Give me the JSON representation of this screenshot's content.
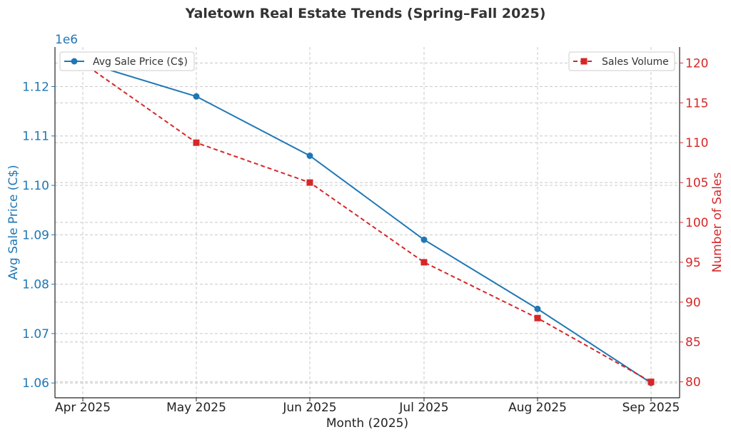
{
  "chart_data": {
    "type": "line",
    "title": "Yaletown Real Estate Trends (Spring–Fall 2025)",
    "xlabel": "Month (2025)",
    "categories": [
      "Apr 2025",
      "May 2025",
      "Jun 2025",
      "Jul 2025",
      "Aug 2025",
      "Sep 2025"
    ],
    "y_left": {
      "label": "Avg Sale Price (C$)",
      "offset_text": "1e6",
      "ticks": [
        "1.06",
        "1.07",
        "1.08",
        "1.09",
        "1.10",
        "1.11",
        "1.12"
      ],
      "tick_values": [
        1060000,
        1070000,
        1080000,
        1090000,
        1100000,
        1110000,
        1120000
      ],
      "ylim": [
        1057000,
        1128000
      ]
    },
    "y_right": {
      "label": "Number of Sales",
      "ticks": [
        "80",
        "85",
        "90",
        "95",
        "100",
        "105",
        "110",
        "115",
        "120"
      ],
      "tick_values": [
        80,
        85,
        90,
        95,
        100,
        105,
        110,
        115,
        120
      ],
      "ylim": [
        78,
        122
      ]
    },
    "series": [
      {
        "name": "Avg Sale Price (C$)",
        "axis": "left",
        "color": "#1f77b4",
        "line_style": "solid",
        "marker": "circle",
        "values": [
          1125000,
          1118000,
          1106000,
          1089000,
          1075000,
          1060000
        ]
      },
      {
        "name": "Sales Volume",
        "axis": "right",
        "color": "#d62728",
        "line_style": "dashed",
        "marker": "square",
        "values": [
          120,
          110,
          105,
          95,
          88,
          80
        ]
      }
    ],
    "grid": true,
    "legend": {
      "left_series": "top-left",
      "right_series": "top-right"
    }
  }
}
